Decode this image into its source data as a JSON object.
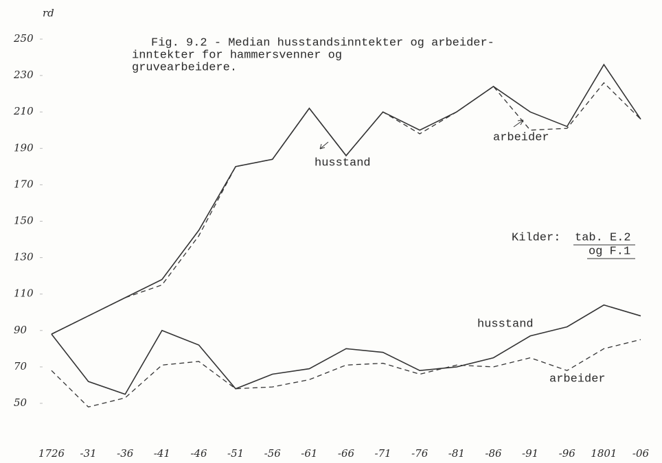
{
  "chart_data": {
    "type": "line",
    "title_lines": [
      "Fig. 9.2 -  Median husstandsinntekter og arbeider-",
      "inntekter for hammersvenner og",
      "gruvearbeidere."
    ],
    "ylabel": "rd",
    "source": [
      "Kilder:",
      "tab. E.2",
      "og F.1"
    ],
    "categories": [
      "1726",
      "-31",
      "-36",
      "-41",
      "-46",
      "-51",
      "-56",
      "-61",
      "-66",
      "-71",
      "-76",
      "-81",
      "-86",
      "-91",
      "-96",
      "1801",
      "-06"
    ],
    "series": [
      {
        "name": "husstand",
        "color": "#333333",
        "dash": false,
        "values": [
          88,
          98,
          108,
          118,
          145,
          180,
          184,
          212,
          186,
          210,
          200,
          210,
          224,
          210,
          202,
          236,
          206
        ]
      },
      {
        "name": "arbeider",
        "color": "#333333",
        "dash": true,
        "values": [
          88,
          98,
          108,
          115,
          142,
          180,
          184,
          212,
          186,
          210,
          198,
          210,
          224,
          200,
          201,
          226,
          206
        ]
      },
      {
        "name": "husstand",
        "color": "#333333",
        "dash": false,
        "values": [
          88,
          62,
          55,
          90,
          82,
          58,
          66,
          69,
          80,
          78,
          68,
          70,
          75,
          87,
          92,
          104,
          98
        ]
      },
      {
        "name": "arbeider",
        "color": "#333333",
        "dash": true,
        "values": [
          68,
          48,
          53,
          71,
          73,
          58,
          59,
          63,
          71,
          72,
          66,
          71,
          70,
          75,
          68,
          80,
          85
        ]
      }
    ],
    "ylim": [
      50,
      250
    ],
    "yticks": [
      50,
      70,
      90,
      110,
      130,
      150,
      170,
      190,
      210,
      230,
      250
    ],
    "grid": false
  }
}
